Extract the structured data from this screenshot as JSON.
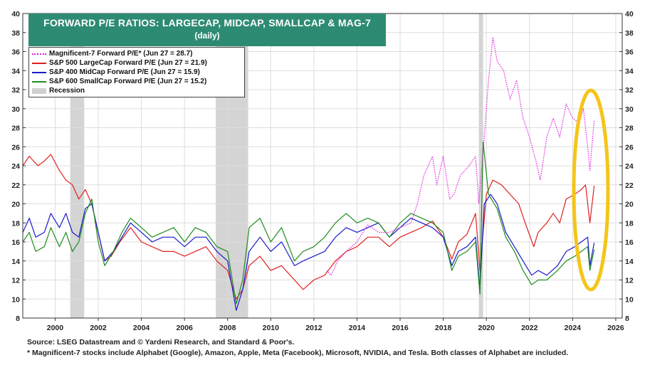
{
  "chart_data": {
    "type": "line",
    "title": "FORWARD P/E RATIOS: LARGECAP, MIDCAP, SMALLCAP & MAG-7",
    "subtitle": "(daily)",
    "xlim": [
      1999.0,
      2026.8
    ],
    "ylim": [
      8,
      40
    ],
    "x_ticks": [
      "2000",
      "2002",
      "2004",
      "2006",
      "2008",
      "2010",
      "2012",
      "2014",
      "2016",
      "2018",
      "2020",
      "2022",
      "2024",
      "2026"
    ],
    "y_ticks": [
      8,
      10,
      12,
      14,
      16,
      18,
      20,
      22,
      24,
      26,
      28,
      30,
      32,
      34,
      36,
      38,
      40
    ],
    "grid": true,
    "legend_position": "top-left",
    "recessions": [
      [
        2001.2,
        2001.85
      ],
      [
        2007.95,
        2009.45
      ],
      [
        2020.15,
        2020.35
      ]
    ],
    "annotation": "yellow-oval-highlight",
    "highlight_color": "#f5c518",
    "series": [
      {
        "name": "Magnificent-7 Forward P/E* (Jun 27 = 28.7)",
        "color": "#e020e0",
        "style": "dotted",
        "points": [
          [
            2013.1,
            13.0
          ],
          [
            2013.3,
            12.5
          ],
          [
            2013.6,
            14.0
          ],
          [
            2014.0,
            15.0
          ],
          [
            2014.5,
            16.0
          ],
          [
            2015.0,
            17.8
          ],
          [
            2015.5,
            17.0
          ],
          [
            2016.0,
            17.0
          ],
          [
            2016.5,
            17.5
          ],
          [
            2017.0,
            18.0
          ],
          [
            2017.3,
            20.0
          ],
          [
            2017.6,
            23.0
          ],
          [
            2018.0,
            25.0
          ],
          [
            2018.2,
            22.0
          ],
          [
            2018.5,
            25.0
          ],
          [
            2018.8,
            20.5
          ],
          [
            2019.0,
            21.0
          ],
          [
            2019.3,
            23.0
          ],
          [
            2019.7,
            24.0
          ],
          [
            2020.0,
            25.0
          ],
          [
            2020.15,
            20.0
          ],
          [
            2020.4,
            27.0
          ],
          [
            2020.6,
            33.0
          ],
          [
            2020.8,
            37.5
          ],
          [
            2021.0,
            35.0
          ],
          [
            2021.3,
            34.0
          ],
          [
            2021.6,
            31.0
          ],
          [
            2021.9,
            33.0
          ],
          [
            2022.2,
            29.0
          ],
          [
            2022.5,
            27.0
          ],
          [
            2022.8,
            24.5
          ],
          [
            2023.0,
            22.5
          ],
          [
            2023.3,
            27.0
          ],
          [
            2023.6,
            29.0
          ],
          [
            2023.9,
            27.0
          ],
          [
            2024.2,
            30.5
          ],
          [
            2024.5,
            29.0
          ],
          [
            2024.8,
            28.5
          ],
          [
            2025.0,
            30.0
          ],
          [
            2025.2,
            26.0
          ],
          [
            2025.3,
            23.5
          ],
          [
            2025.45,
            27.5
          ],
          [
            2025.5,
            28.7
          ]
        ]
      },
      {
        "name": "S&P 500 LargeCap Forward P/E (Jun 27 = 21.9)",
        "color": "#e02020",
        "style": "solid",
        "points": [
          [
            1999.0,
            24.0
          ],
          [
            1999.3,
            25.0
          ],
          [
            1999.7,
            24.0
          ],
          [
            2000.0,
            24.5
          ],
          [
            2000.3,
            25.2
          ],
          [
            2000.7,
            23.5
          ],
          [
            2001.0,
            22.5
          ],
          [
            2001.3,
            22.0
          ],
          [
            2001.6,
            20.5
          ],
          [
            2001.9,
            21.5
          ],
          [
            2002.2,
            20.0
          ],
          [
            2002.5,
            17.0
          ],
          [
            2002.8,
            14.0
          ],
          [
            2003.1,
            14.5
          ],
          [
            2003.5,
            16.0
          ],
          [
            2004.0,
            17.5
          ],
          [
            2004.5,
            16.0
          ],
          [
            2005.0,
            15.5
          ],
          [
            2005.5,
            15.0
          ],
          [
            2006.0,
            15.0
          ],
          [
            2006.5,
            14.5
          ],
          [
            2007.0,
            15.0
          ],
          [
            2007.5,
            15.5
          ],
          [
            2008.0,
            14.0
          ],
          [
            2008.5,
            13.0
          ],
          [
            2008.9,
            10.0
          ],
          [
            2009.2,
            11.0
          ],
          [
            2009.5,
            13.5
          ],
          [
            2010.0,
            14.5
          ],
          [
            2010.5,
            13.0
          ],
          [
            2011.0,
            13.5
          ],
          [
            2011.6,
            12.0
          ],
          [
            2012.0,
            11.0
          ],
          [
            2012.5,
            12.0
          ],
          [
            2013.0,
            12.5
          ],
          [
            2013.5,
            14.0
          ],
          [
            2014.0,
            15.0
          ],
          [
            2014.5,
            15.5
          ],
          [
            2015.0,
            16.5
          ],
          [
            2015.5,
            16.5
          ],
          [
            2016.0,
            15.5
          ],
          [
            2016.5,
            16.5
          ],
          [
            2017.0,
            17.0
          ],
          [
            2017.5,
            17.5
          ],
          [
            2018.0,
            18.2
          ],
          [
            2018.5,
            16.5
          ],
          [
            2018.9,
            14.2
          ],
          [
            2019.2,
            16.0
          ],
          [
            2019.6,
            16.8
          ],
          [
            2020.0,
            19.0
          ],
          [
            2020.2,
            13.0
          ],
          [
            2020.5,
            21.0
          ],
          [
            2020.8,
            22.5
          ],
          [
            2021.2,
            22.0
          ],
          [
            2021.6,
            21.0
          ],
          [
            2022.0,
            20.0
          ],
          [
            2022.3,
            18.0
          ],
          [
            2022.7,
            15.5
          ],
          [
            2022.9,
            17.0
          ],
          [
            2023.3,
            18.0
          ],
          [
            2023.6,
            19.0
          ],
          [
            2023.9,
            18.0
          ],
          [
            2024.2,
            20.5
          ],
          [
            2024.6,
            21.0
          ],
          [
            2024.9,
            21.5
          ],
          [
            2025.1,
            22.0
          ],
          [
            2025.3,
            18.0
          ],
          [
            2025.5,
            21.9
          ]
        ]
      },
      {
        "name": "S&P 400 MidCap Forward P/E (Jun 27 = 15.9)",
        "color": "#1a1acd",
        "style": "solid",
        "points": [
          [
            1999.0,
            17.0
          ],
          [
            1999.3,
            18.5
          ],
          [
            1999.6,
            16.5
          ],
          [
            2000.0,
            17.0
          ],
          [
            2000.3,
            19.0
          ],
          [
            2000.7,
            17.5
          ],
          [
            2001.0,
            19.0
          ],
          [
            2001.3,
            17.0
          ],
          [
            2001.6,
            16.5
          ],
          [
            2001.9,
            19.5
          ],
          [
            2002.2,
            20.0
          ],
          [
            2002.5,
            17.0
          ],
          [
            2002.8,
            14.0
          ],
          [
            2003.2,
            15.0
          ],
          [
            2003.6,
            16.5
          ],
          [
            2004.0,
            18.0
          ],
          [
            2004.5,
            17.0
          ],
          [
            2005.0,
            16.0
          ],
          [
            2005.5,
            16.5
          ],
          [
            2006.0,
            16.5
          ],
          [
            2006.5,
            15.5
          ],
          [
            2007.0,
            16.5
          ],
          [
            2007.5,
            16.5
          ],
          [
            2008.0,
            15.0
          ],
          [
            2008.5,
            14.0
          ],
          [
            2008.9,
            8.8
          ],
          [
            2009.2,
            11.0
          ],
          [
            2009.5,
            15.0
          ],
          [
            2010.0,
            16.5
          ],
          [
            2010.5,
            15.0
          ],
          [
            2011.0,
            16.0
          ],
          [
            2011.6,
            13.5
          ],
          [
            2012.0,
            14.0
          ],
          [
            2012.5,
            14.5
          ],
          [
            2013.0,
            15.0
          ],
          [
            2013.5,
            16.5
          ],
          [
            2014.0,
            17.5
          ],
          [
            2014.5,
            17.0
          ],
          [
            2015.0,
            17.5
          ],
          [
            2015.5,
            18.0
          ],
          [
            2016.0,
            16.5
          ],
          [
            2016.5,
            17.5
          ],
          [
            2017.0,
            18.5
          ],
          [
            2017.5,
            18.0
          ],
          [
            2018.0,
            17.5
          ],
          [
            2018.5,
            16.5
          ],
          [
            2018.9,
            13.5
          ],
          [
            2019.2,
            15.0
          ],
          [
            2019.6,
            15.5
          ],
          [
            2020.0,
            16.5
          ],
          [
            2020.2,
            11.0
          ],
          [
            2020.4,
            20.0
          ],
          [
            2020.7,
            21.0
          ],
          [
            2021.0,
            20.0
          ],
          [
            2021.4,
            17.0
          ],
          [
            2021.8,
            15.5
          ],
          [
            2022.2,
            14.0
          ],
          [
            2022.6,
            12.5
          ],
          [
            2022.9,
            13.0
          ],
          [
            2023.3,
            12.5
          ],
          [
            2023.8,
            13.5
          ],
          [
            2024.2,
            15.0
          ],
          [
            2024.6,
            15.5
          ],
          [
            2024.9,
            16.0
          ],
          [
            2025.2,
            16.5
          ],
          [
            2025.3,
            13.5
          ],
          [
            2025.5,
            15.9
          ]
        ]
      },
      {
        "name": "S&P 600 SmallCap Forward P/E (Jun 27 = 15.2)",
        "color": "#1e8c1e",
        "style": "solid",
        "points": [
          [
            1999.0,
            16.0
          ],
          [
            1999.3,
            17.0
          ],
          [
            1999.6,
            15.0
          ],
          [
            2000.0,
            15.5
          ],
          [
            2000.3,
            17.5
          ],
          [
            2000.7,
            15.5
          ],
          [
            2001.0,
            17.0
          ],
          [
            2001.3,
            15.0
          ],
          [
            2001.6,
            16.0
          ],
          [
            2001.9,
            19.0
          ],
          [
            2002.2,
            20.5
          ],
          [
            2002.5,
            16.0
          ],
          [
            2002.8,
            13.5
          ],
          [
            2003.2,
            15.0
          ],
          [
            2003.6,
            17.0
          ],
          [
            2004.0,
            18.5
          ],
          [
            2004.5,
            17.5
          ],
          [
            2005.0,
            16.5
          ],
          [
            2005.5,
            17.0
          ],
          [
            2006.0,
            17.5
          ],
          [
            2006.5,
            16.0
          ],
          [
            2007.0,
            17.5
          ],
          [
            2007.5,
            17.0
          ],
          [
            2008.0,
            15.5
          ],
          [
            2008.5,
            15.0
          ],
          [
            2008.9,
            9.5
          ],
          [
            2009.2,
            12.0
          ],
          [
            2009.5,
            17.5
          ],
          [
            2010.0,
            18.5
          ],
          [
            2010.5,
            16.0
          ],
          [
            2011.0,
            17.5
          ],
          [
            2011.6,
            14.0
          ],
          [
            2012.0,
            15.0
          ],
          [
            2012.5,
            15.5
          ],
          [
            2013.0,
            16.5
          ],
          [
            2013.5,
            18.0
          ],
          [
            2014.0,
            19.0
          ],
          [
            2014.5,
            18.0
          ],
          [
            2015.0,
            18.5
          ],
          [
            2015.5,
            18.0
          ],
          [
            2016.0,
            16.5
          ],
          [
            2016.5,
            18.0
          ],
          [
            2017.0,
            19.0
          ],
          [
            2017.5,
            18.5
          ],
          [
            2018.0,
            18.0
          ],
          [
            2018.5,
            17.0
          ],
          [
            2018.9,
            13.0
          ],
          [
            2019.2,
            14.5
          ],
          [
            2019.6,
            15.0
          ],
          [
            2020.0,
            16.0
          ],
          [
            2020.2,
            10.5
          ],
          [
            2020.35,
            26.5
          ],
          [
            2020.6,
            21.0
          ],
          [
            2021.0,
            19.5
          ],
          [
            2021.4,
            16.5
          ],
          [
            2021.8,
            15.0
          ],
          [
            2022.2,
            13.0
          ],
          [
            2022.6,
            11.5
          ],
          [
            2022.9,
            12.0
          ],
          [
            2023.3,
            12.0
          ],
          [
            2023.8,
            13.0
          ],
          [
            2024.2,
            14.0
          ],
          [
            2024.6,
            14.5
          ],
          [
            2024.9,
            15.0
          ],
          [
            2025.2,
            15.5
          ],
          [
            2025.3,
            13.0
          ],
          [
            2025.5,
            15.2
          ]
        ]
      }
    ],
    "recession_label": "Recession"
  },
  "source_line1": "Source: LSEG Datastream and © Yardeni Research, and Standard & Poor's.",
  "source_line2": "* Magnificent-7 stocks include Alphabet (Google), Amazon, Apple, Meta (Facebook), Microsoft, NVIDIA, and Tesla. Both classes of Alphabet are included."
}
